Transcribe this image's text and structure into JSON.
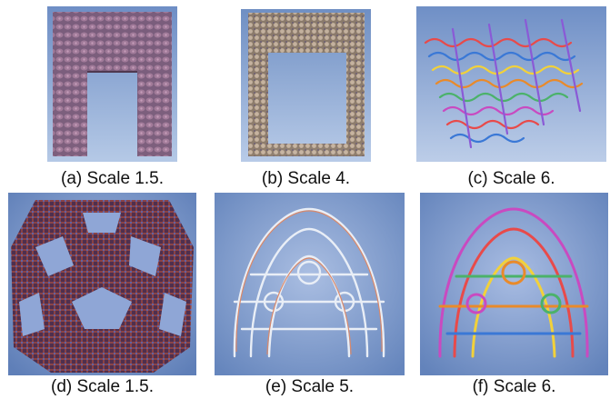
{
  "figure": {
    "panels": [
      {
        "id": "a",
        "caption": "(a) Scale 1.5."
      },
      {
        "id": "b",
        "caption": "(b) Scale 4."
      },
      {
        "id": "c",
        "caption": "(c) Scale 6."
      },
      {
        "id": "d",
        "caption": "(d) Scale 1.5."
      },
      {
        "id": "e",
        "caption": "(e) Scale 5."
      },
      {
        "id": "f",
        "caption": "(f) Scale 6."
      }
    ]
  }
}
